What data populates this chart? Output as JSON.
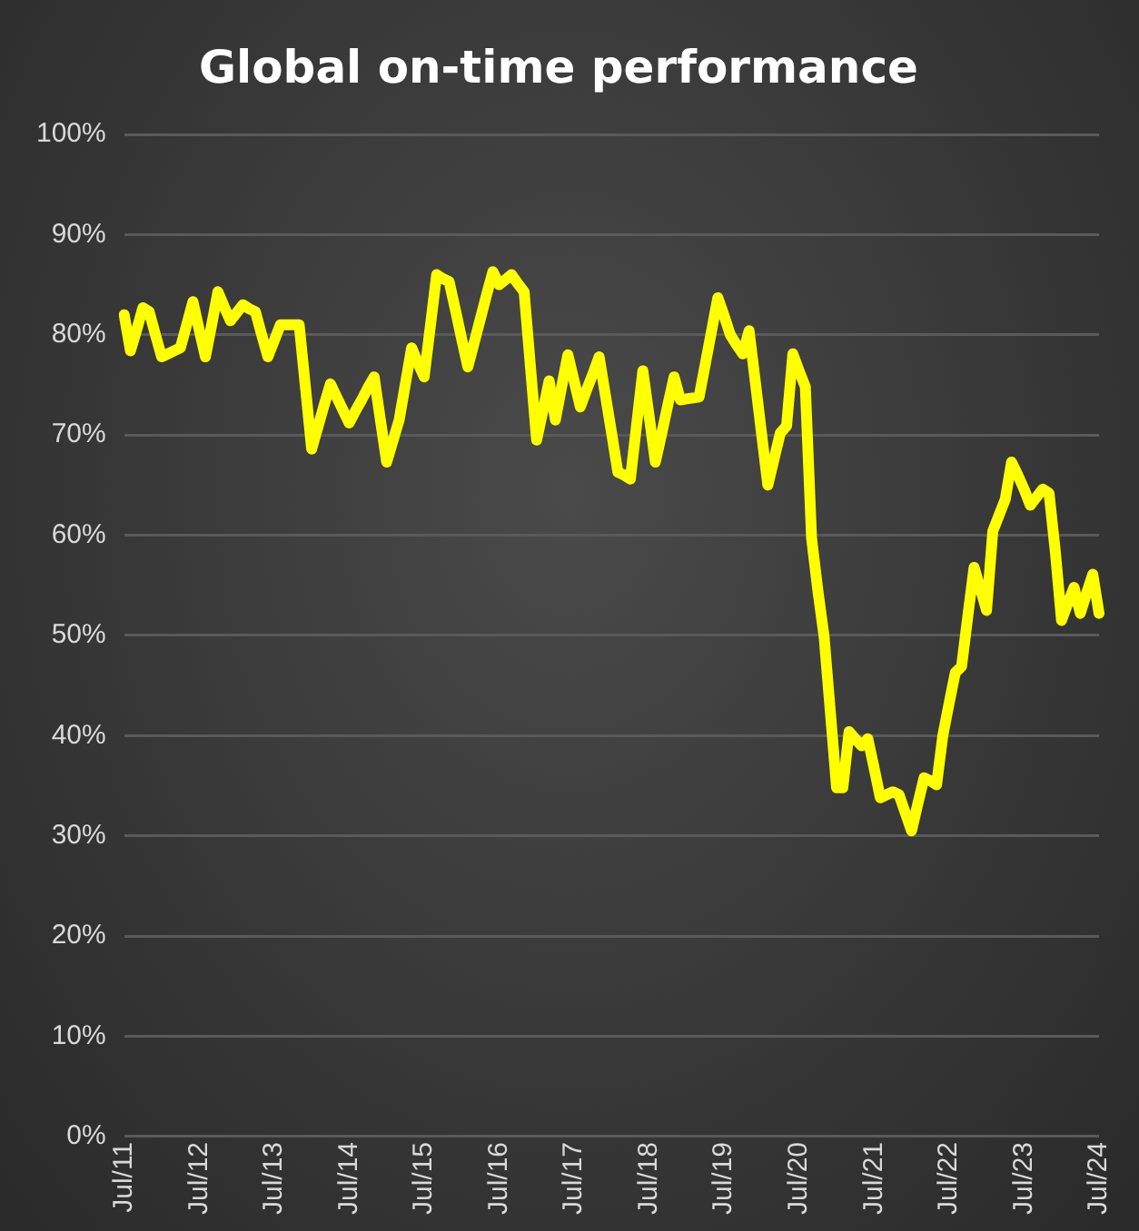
{
  "chart_data": {
    "type": "line",
    "title": "Global on-time performance",
    "categories": [
      "Jul/11",
      null,
      null,
      null,
      null,
      null,
      null,
      null,
      null,
      null,
      null,
      null,
      "Jul/12",
      null,
      null,
      null,
      null,
      null,
      null,
      null,
      null,
      null,
      null,
      null,
      "Jul/13",
      null,
      null,
      null,
      null,
      null,
      null,
      null,
      null,
      null,
      null,
      null,
      "Jul/14",
      null,
      null,
      null,
      null,
      null,
      null,
      null,
      null,
      null,
      null,
      null,
      "Jul/15",
      null,
      null,
      null,
      null,
      null,
      null,
      null,
      null,
      null,
      null,
      null,
      "Jul/16",
      null,
      null,
      null,
      null,
      null,
      null,
      null,
      null,
      null,
      null,
      null,
      "Jul/17",
      null,
      null,
      null,
      null,
      null,
      null,
      null,
      null,
      null,
      null,
      null,
      "Jul/18",
      null,
      null,
      null,
      null,
      null,
      null,
      null,
      null,
      null,
      null,
      null,
      "Jul/19",
      null,
      null,
      null,
      null,
      null,
      null,
      null,
      null,
      null,
      null,
      null,
      "Jul/20",
      null,
      null,
      null,
      null,
      null,
      null,
      null,
      null,
      null,
      null,
      null,
      "Jul/21",
      null,
      null,
      null,
      null,
      null,
      null,
      null,
      null,
      null,
      null,
      null,
      "Jul/22",
      null,
      null,
      null,
      null,
      null,
      null,
      null,
      null,
      null,
      null,
      null,
      "Jul/23",
      null,
      null,
      null,
      null,
      null,
      null,
      null,
      null,
      null,
      null,
      null,
      "Jul/24"
    ],
    "series": [
      {
        "color": "#ffff00",
        "values": [
          82,
          78.4,
          80.5,
          82.7,
          82.3,
          80,
          77.8,
          78.1,
          78.4,
          78.7,
          81,
          83.3,
          80.5,
          77.8,
          81,
          84.3,
          82.8,
          81.4,
          82.2,
          83,
          82.6,
          82.3,
          80,
          77.8,
          79.4,
          81,
          81,
          81,
          81,
          74.8,
          68.6,
          70.8,
          73,
          75.1,
          73.8,
          72.5,
          71.2,
          72.4,
          73.5,
          74.7,
          75.8,
          71.5,
          67.3,
          69.4,
          71.5,
          75.1,
          78.7,
          77.2,
          75.8,
          80.9,
          86,
          85.6,
          85.3,
          82.5,
          79.6,
          76.8,
          79.2,
          81.6,
          84,
          86.3,
          85,
          85.5,
          86,
          85.1,
          84.3,
          76.9,
          69.5,
          72.4,
          75.4,
          71.5,
          74.8,
          78,
          75.4,
          72.8,
          74.5,
          76.1,
          77.8,
          74,
          70.2,
          66.3,
          66,
          65.6,
          71,
          76.4,
          71.9,
          67.3,
          70.1,
          73,
          75.8,
          73.5,
          73.6,
          73.7,
          73.8,
          77.1,
          80.4,
          83.7,
          81.9,
          80,
          79,
          78.1,
          80.4,
          75.3,
          70.1,
          65,
          67.6,
          70.2,
          70.9,
          78.1,
          76.4,
          74.8,
          59.7,
          54.5,
          49.9,
          42.4,
          34.8,
          34.8,
          40.4,
          39.7,
          39,
          39.7,
          36.8,
          33.8,
          34.1,
          34.4,
          34.1,
          32.3,
          30.5,
          33.2,
          35.8,
          35.5,
          35.1,
          40,
          43.2,
          46.3,
          46.9,
          51.9,
          56.8,
          54.7,
          52.5,
          60.4,
          62,
          63.6,
          67.3,
          66,
          64.6,
          63,
          63.8,
          64.6,
          64.2,
          58.4,
          51.5,
          53.2,
          54.8,
          52.2,
          54.2,
          56.1,
          52.2
        ]
      }
    ],
    "ylim": [
      0,
      100
    ],
    "yticks": [
      {
        "value": 0,
        "label": "0%"
      },
      {
        "value": 10,
        "label": "10%"
      },
      {
        "value": 20,
        "label": "20%"
      },
      {
        "value": 30,
        "label": "30%"
      },
      {
        "value": 40,
        "label": "40%"
      },
      {
        "value": 50,
        "label": "50%"
      },
      {
        "value": 60,
        "label": "60%"
      },
      {
        "value": 70,
        "label": "70%"
      },
      {
        "value": 80,
        "label": "80%"
      },
      {
        "value": 90,
        "label": "90%"
      },
      {
        "value": 100,
        "label": "100%"
      }
    ],
    "grid": "y",
    "legend": false,
    "marker": "none",
    "line_style": "solid"
  }
}
